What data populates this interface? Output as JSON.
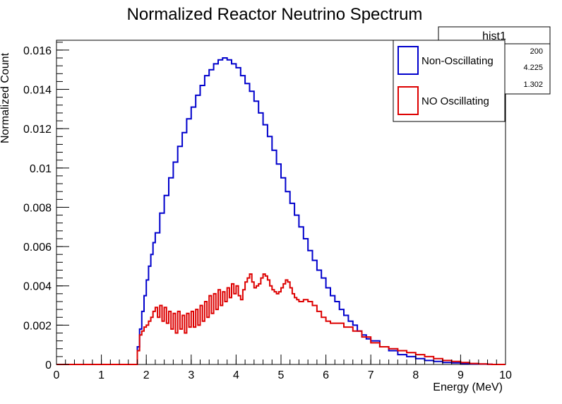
{
  "chart_data": {
    "type": "line",
    "title": "Normalized Reactor Neutrino Spectrum",
    "xlabel": "Energy (MeV)",
    "ylabel": "Normalized Count",
    "xlim": [
      0,
      10
    ],
    "ylim": [
      0,
      0.0165
    ],
    "x_ticks": [
      "0",
      "1",
      "2",
      "3",
      "4",
      "5",
      "6",
      "7",
      "8",
      "9",
      "10"
    ],
    "y_ticks": [
      "0",
      "0.002",
      "0.004",
      "0.006",
      "0.008",
      "0.01",
      "0.012",
      "0.014",
      "0.016"
    ],
    "grid": false,
    "legend_position": "top-right",
    "stats_box": {
      "title": "hist1",
      "values": [
        "200",
        "4.225",
        "1.302"
      ]
    },
    "series": [
      {
        "name": "Non-Oscillating",
        "color": "#0000cc",
        "x": [
          0,
          1.8,
          1.85,
          1.9,
          1.95,
          2.0,
          2.05,
          2.1,
          2.15,
          2.2,
          2.3,
          2.4,
          2.5,
          2.6,
          2.7,
          2.8,
          2.9,
          3.0,
          3.1,
          3.2,
          3.3,
          3.4,
          3.5,
          3.6,
          3.7,
          3.8,
          3.9,
          4.0,
          4.1,
          4.2,
          4.3,
          4.4,
          4.5,
          4.6,
          4.7,
          4.8,
          4.9,
          5.0,
          5.1,
          5.2,
          5.3,
          5.4,
          5.5,
          5.6,
          5.7,
          5.8,
          5.9,
          6.0,
          6.1,
          6.2,
          6.3,
          6.4,
          6.5,
          6.6,
          6.7,
          6.8,
          6.9,
          7.0,
          7.2,
          7.4,
          7.6,
          7.8,
          8.0,
          8.2,
          8.4,
          8.6,
          8.8,
          9.0,
          9.2,
          9.4,
          9.6,
          9.7,
          10.0
        ],
        "values": [
          0,
          0.0009,
          0.0018,
          0.0027,
          0.0035,
          0.0043,
          0.005,
          0.0056,
          0.0062,
          0.0067,
          0.0077,
          0.0086,
          0.0095,
          0.0103,
          0.0111,
          0.0118,
          0.0125,
          0.0131,
          0.0137,
          0.0142,
          0.0147,
          0.015,
          0.0153,
          0.0155,
          0.0156,
          0.0155,
          0.0153,
          0.0151,
          0.0147,
          0.0143,
          0.0139,
          0.0134,
          0.0128,
          0.0122,
          0.0116,
          0.0109,
          0.0102,
          0.0095,
          0.0088,
          0.0082,
          0.0076,
          0.007,
          0.0064,
          0.0058,
          0.0053,
          0.0048,
          0.0044,
          0.0039,
          0.0035,
          0.0032,
          0.0028,
          0.0025,
          0.0022,
          0.002,
          0.0017,
          0.0015,
          0.0013,
          0.0012,
          0.0009,
          0.0007,
          0.0005,
          0.0004,
          0.0003,
          0.0002,
          0.00015,
          0.0001,
          8e-05,
          5e-05,
          3e-05,
          2e-05,
          1e-05,
          0,
          0
        ]
      },
      {
        "name": "NO Oscillating",
        "color": "#dd0000",
        "x": [
          0,
          1.8,
          1.85,
          1.9,
          1.95,
          2.0,
          2.05,
          2.1,
          2.15,
          2.2,
          2.25,
          2.3,
          2.35,
          2.4,
          2.45,
          2.5,
          2.55,
          2.6,
          2.65,
          2.7,
          2.75,
          2.8,
          2.85,
          2.9,
          2.95,
          3.0,
          3.05,
          3.1,
          3.15,
          3.2,
          3.25,
          3.3,
          3.35,
          3.4,
          3.45,
          3.5,
          3.55,
          3.6,
          3.65,
          3.7,
          3.75,
          3.8,
          3.85,
          3.9,
          3.95,
          4.0,
          4.05,
          4.1,
          4.15,
          4.2,
          4.25,
          4.3,
          4.35,
          4.4,
          4.45,
          4.5,
          4.55,
          4.6,
          4.65,
          4.7,
          4.75,
          4.8,
          4.85,
          4.9,
          4.95,
          5.0,
          5.05,
          5.1,
          5.15,
          5.2,
          5.25,
          5.3,
          5.35,
          5.4,
          5.45,
          5.5,
          5.6,
          5.7,
          5.8,
          5.9,
          6.0,
          6.1,
          6.2,
          6.4,
          6.6,
          6.8,
          7.0,
          7.2,
          7.4,
          7.6,
          7.8,
          8.0,
          8.2,
          8.4,
          8.6,
          8.8,
          9.0,
          9.2,
          9.4,
          9.6,
          9.7,
          10.0
        ],
        "values": [
          0,
          0.0007,
          0.0015,
          0.0017,
          0.0019,
          0.002,
          0.0022,
          0.0024,
          0.0027,
          0.0029,
          0.0024,
          0.003,
          0.0022,
          0.0029,
          0.0021,
          0.0027,
          0.0018,
          0.0026,
          0.0016,
          0.0027,
          0.0018,
          0.0025,
          0.0016,
          0.0026,
          0.0019,
          0.0027,
          0.0019,
          0.0028,
          0.002,
          0.003,
          0.0022,
          0.0032,
          0.0024,
          0.0035,
          0.0026,
          0.0036,
          0.0028,
          0.0038,
          0.003,
          0.0037,
          0.0032,
          0.0039,
          0.0034,
          0.0041,
          0.0036,
          0.004,
          0.0035,
          0.0033,
          0.0038,
          0.0042,
          0.0044,
          0.0046,
          0.0042,
          0.0039,
          0.004,
          0.0041,
          0.0044,
          0.0046,
          0.0045,
          0.0043,
          0.004,
          0.0038,
          0.0037,
          0.0036,
          0.0037,
          0.0039,
          0.0041,
          0.0043,
          0.0042,
          0.0039,
          0.0036,
          0.0034,
          0.0033,
          0.0032,
          0.0032,
          0.0033,
          0.0032,
          0.003,
          0.0027,
          0.0024,
          0.0022,
          0.0021,
          0.0021,
          0.0019,
          0.0017,
          0.0014,
          0.0011,
          0.0009,
          0.0008,
          0.0007,
          0.0006,
          0.0005,
          0.0004,
          0.0003,
          0.0002,
          0.00015,
          0.0001,
          5e-05,
          3e-05,
          1e-05,
          0,
          0
        ]
      }
    ]
  }
}
